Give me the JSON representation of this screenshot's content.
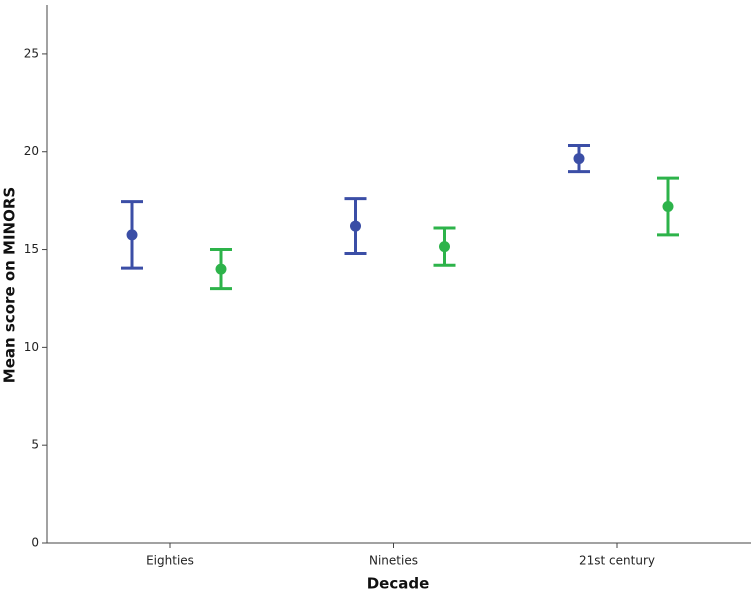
{
  "chart_data": {
    "type": "errorbar",
    "x_label": "Decade",
    "y_label": "Mean score on MINORS",
    "categories": [
      "Eighties",
      "Nineties",
      "21st century"
    ],
    "series": [
      {
        "color": "#3b4ea6",
        "values": [
          15.75,
          16.2,
          19.65
        ],
        "errors": [
          1.7,
          1.4,
          0.67
        ]
      },
      {
        "color": "#2db34a",
        "values": [
          14.0,
          15.15,
          17.2
        ],
        "errors": [
          1.0,
          0.95,
          1.45
        ]
      }
    ],
    "ylim": [
      0,
      27.5
    ],
    "yticks": [
      0,
      5,
      10,
      15,
      20,
      25
    ],
    "grid": false
  }
}
